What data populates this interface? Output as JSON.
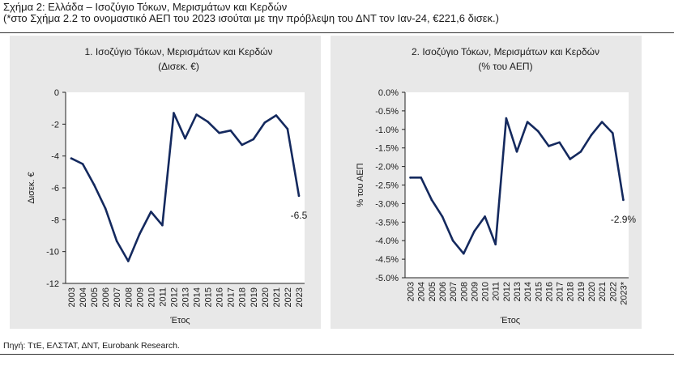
{
  "figure": {
    "title_line1": "Σχήμα 2: Ελλάδα – Ισοζύγιο Τόκων, Μερισμάτων και Κερδών",
    "title_line2": "(*στο Σχήμα 2.2 το ονομαστικό ΑΕΠ του 2023 ισούται με την πρόβλεψη του ΔΝΤ τον Ιαν-24, €221,6 δισεκ.)",
    "source": "Πηγή: ΤτΕ, ΕΛΣΤΑΤ, ΔΝΤ, Eurobank Research."
  },
  "colors": {
    "line": "#14295e",
    "axis": "#222222",
    "panel_bg": "#e8e8e8",
    "plot_bg": "#ffffff"
  },
  "chart_data": [
    {
      "type": "line",
      "title_line1": "1. Ισοζύγιο Τόκων, Μερισμάτων και Κερδών",
      "title_line2": "(Δισεκ. €)",
      "xlabel": "Έτος",
      "ylabel": "Δισεκ. €",
      "ylim": [
        -12,
        0
      ],
      "yticks": [
        0,
        -2,
        -4,
        -6,
        -8,
        -10,
        -12
      ],
      "ytick_labels": [
        "0",
        "-2",
        "-4",
        "-6",
        "-8",
        "-10",
        "-12"
      ],
      "categories": [
        "2003",
        "2004",
        "2005",
        "2006",
        "2007",
        "2008",
        "2009",
        "2010",
        "2011",
        "2012",
        "2013",
        "2014",
        "2015",
        "2016",
        "2017",
        "2018",
        "2019",
        "2020",
        "2021",
        "2022",
        "2023"
      ],
      "series": [
        {
          "name": "Ισοζύγιο Τόκων, Μερισμάτων και Κερδών",
          "values": [
            -4.15,
            -4.5,
            -5.8,
            -7.3,
            -9.35,
            -10.6,
            -8.9,
            -7.5,
            -8.35,
            -1.3,
            -2.9,
            -1.4,
            -1.85,
            -2.55,
            -2.4,
            -3.3,
            -2.95,
            -1.9,
            -1.45,
            -2.3,
            -6.5
          ]
        }
      ],
      "annotation": {
        "label": "-6.5",
        "index": 20
      },
      "grid": false
    },
    {
      "type": "line",
      "title_line1": "2. Ισοζύγιο Τόκων, Μερισμάτων και Κερδών",
      "title_line2": "(% του ΑΕΠ)",
      "xlabel": "Έτος",
      "ylabel": "% του ΑΕΠ",
      "ylim": [
        -5.0,
        0.0
      ],
      "yticks": [
        0,
        -0.5,
        -1.0,
        -1.5,
        -2.0,
        -2.5,
        -3.0,
        -3.5,
        -4.0,
        -4.5,
        -5.0
      ],
      "ytick_labels": [
        "0.0%",
        "-0.5%",
        "-1.0%",
        "-1.5%",
        "-2.0%",
        "-2.5%",
        "-3.0%",
        "-3.5%",
        "-4.0%",
        "-4.5%",
        "-5.0%"
      ],
      "categories": [
        "2003",
        "2004",
        "2005",
        "2006",
        "2007",
        "2008",
        "2009",
        "2010",
        "2011",
        "2012",
        "2013",
        "2014",
        "2015",
        "2016",
        "2017",
        "2018",
        "2019",
        "2020",
        "2021",
        "2022",
        "2023*"
      ],
      "series": [
        {
          "name": "Ισοζύγιο Τόκων, Μερισμάτων και Κερδών (% του ΑΕΠ)",
          "values": [
            -2.3,
            -2.3,
            -2.9,
            -3.35,
            -4.0,
            -4.35,
            -3.75,
            -3.35,
            -4.1,
            -0.7,
            -1.6,
            -0.8,
            -1.05,
            -1.45,
            -1.35,
            -1.8,
            -1.6,
            -1.15,
            -0.8,
            -1.1,
            -2.9
          ]
        }
      ],
      "annotation": {
        "label": "-2.9%",
        "index": 20
      },
      "grid": false
    }
  ]
}
